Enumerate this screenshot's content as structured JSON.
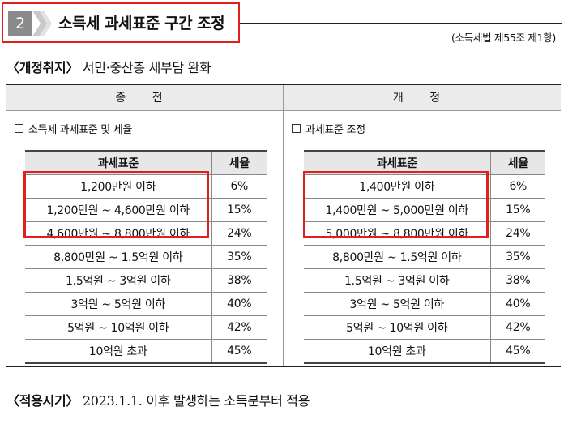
{
  "header": {
    "section_number": "2",
    "title": "소득세 과세표준 구간 조정",
    "law_reference": "(소득세법 제55조 제1항)",
    "accent_color": "#e0201c"
  },
  "purpose": {
    "label": "〈개정취지〉",
    "text": "서민·중산층 세부담 완화"
  },
  "columns": {
    "before_title": "종 전",
    "after_title": "개 정"
  },
  "before": {
    "subtitle": "소득세 과세표준 및 세율",
    "headers": [
      "과세표준",
      "세율"
    ],
    "rows": [
      [
        "1,200만원 이하",
        "6%"
      ],
      [
        "1,200만원 ~ 4,600만원 이하",
        "15%"
      ],
      [
        "4,600만원 ~ 8,800만원 이하",
        "24%"
      ],
      [
        "8,800만원 ~ 1.5억원 이하",
        "35%"
      ],
      [
        "1.5억원 ~ 3억원 이하",
        "38%"
      ],
      [
        "3억원 ~ 5억원 이하",
        "40%"
      ],
      [
        "5억원 ~ 10억원 이하",
        "42%"
      ],
      [
        "10억원 초과",
        "45%"
      ]
    ]
  },
  "after": {
    "subtitle": "과세표준 조정",
    "headers": [
      "과세표준",
      "세율"
    ],
    "rows": [
      [
        "1,400만원 이하",
        "6%"
      ],
      [
        "1,400만원 ~ 5,000만원 이하",
        "15%"
      ],
      [
        "5,000만원 ~ 8,800만원 이하",
        "24%"
      ],
      [
        "8,800만원 ~ 1.5억원 이하",
        "35%"
      ],
      [
        "1.5억원 ~ 3억원 이하",
        "38%"
      ],
      [
        "3억원 ~ 5억원 이하",
        "40%"
      ],
      [
        "5억원 ~ 10억원 이하",
        "42%"
      ],
      [
        "10억원 초과",
        "45%"
      ]
    ]
  },
  "effective": {
    "label": "〈적용시기〉",
    "text": "2023.1.1. 이후 발생하는 소득분부터 적용"
  }
}
